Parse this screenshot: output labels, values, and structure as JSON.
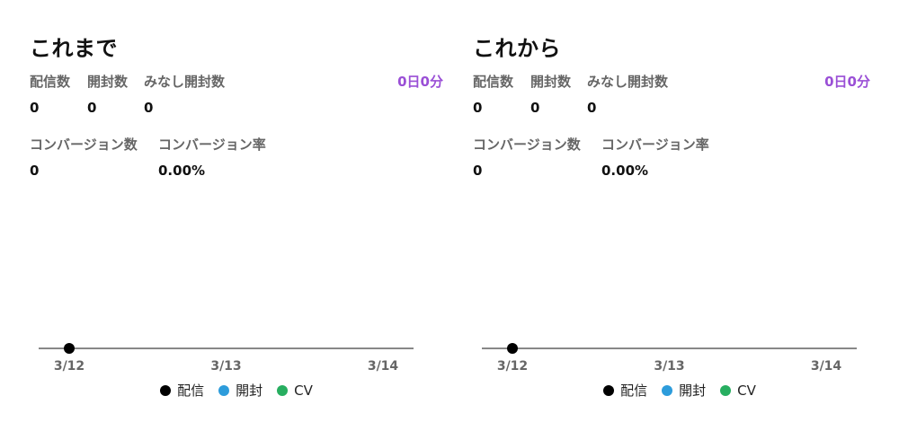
{
  "panels": [
    {
      "title": "これまで",
      "labels": {
        "delivered": "配信数",
        "opened": "開封数",
        "deemed_opened": "みなし開封数",
        "conversions": "コンバージョン数",
        "conversion_rate": "コンバージョン率"
      },
      "values": {
        "delivered": "0",
        "opened": "0",
        "deemed_opened": "0",
        "conversions": "0",
        "conversion_rate": "0.00%"
      },
      "duration": "0日0分"
    },
    {
      "title": "これから",
      "labels": {
        "delivered": "配信数",
        "opened": "開封数",
        "deemed_opened": "みなし開封数",
        "conversions": "コンバージョン数",
        "conversion_rate": "コンバージョン率"
      },
      "values": {
        "delivered": "0",
        "opened": "0",
        "deemed_opened": "0",
        "conversions": "0",
        "conversion_rate": "0.00%"
      },
      "duration": "0日0分"
    }
  ],
  "chart_data": [
    {
      "type": "line",
      "x": [
        "3/12",
        "3/13",
        "3/14"
      ],
      "series": [
        {
          "name": "配信",
          "values": [
            0,
            null,
            null
          ],
          "color": "#000000"
        },
        {
          "name": "開封",
          "values": [
            null,
            null,
            null
          ],
          "color": "#2d9cdb"
        },
        {
          "name": "CV",
          "values": [
            null,
            null,
            null
          ],
          "color": "#27ae60"
        }
      ],
      "legend_position": "bottom"
    },
    {
      "type": "line",
      "x": [
        "3/12",
        "3/13",
        "3/14"
      ],
      "series": [
        {
          "name": "配信",
          "values": [
            0,
            null,
            null
          ],
          "color": "#000000"
        },
        {
          "name": "開封",
          "values": [
            null,
            null,
            null
          ],
          "color": "#2d9cdb"
        },
        {
          "name": "CV",
          "values": [
            null,
            null,
            null
          ],
          "color": "#27ae60"
        }
      ],
      "legend_position": "bottom"
    }
  ]
}
